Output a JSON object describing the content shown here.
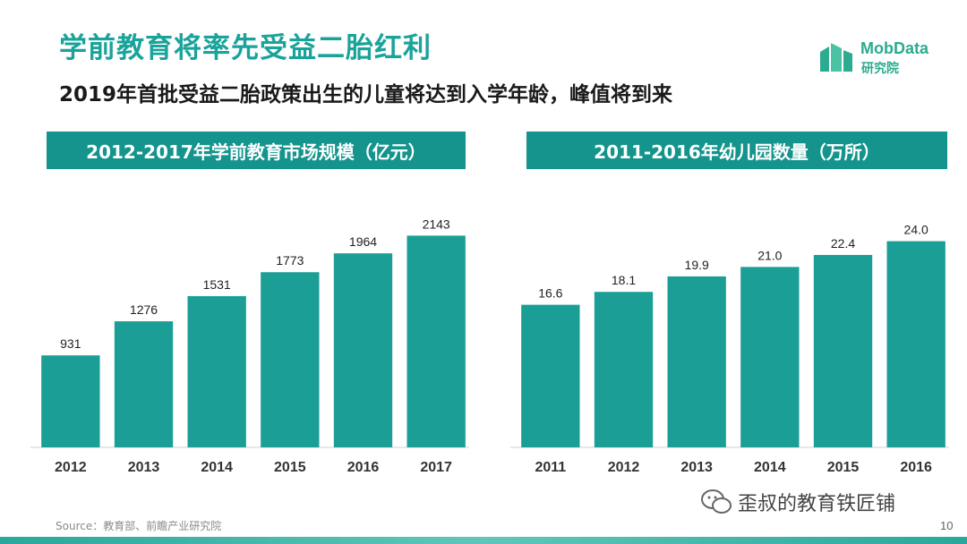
{
  "header": {
    "title": "学前教育将率先受益二胎红利",
    "subtitle": "2019年首批受益二胎政策出生的儿童将达到入学年龄，峰值将到来"
  },
  "logo": {
    "line1": "MobData",
    "line2": "研究院"
  },
  "colors": {
    "accent": "#14948c",
    "bar": "#1a9e95",
    "title": "#1aa39a"
  },
  "chart_data": [
    {
      "type": "bar",
      "title": "2012-2017年学前教育市场规模（亿元）",
      "categories": [
        "2012",
        "2013",
        "2014",
        "2015",
        "2016",
        "2017"
      ],
      "values": [
        931,
        1276,
        1531,
        1773,
        1964,
        2143
      ],
      "value_labels": [
        "931",
        "1276",
        "1531",
        "1773",
        "1964",
        "2143"
      ],
      "xlabel": "",
      "ylabel": "",
      "ylim": [
        0,
        2400
      ]
    },
    {
      "type": "bar",
      "title": "2011-2016年幼儿园数量（万所）",
      "categories": [
        "2011",
        "2012",
        "2013",
        "2014",
        "2015",
        "2016"
      ],
      "values": [
        16.6,
        18.1,
        19.9,
        21.0,
        22.4,
        24.0
      ],
      "value_labels": [
        "16.6",
        "18.1",
        "19.9",
        "21.0",
        "22.4",
        "24.0"
      ],
      "xlabel": "",
      "ylabel": "",
      "ylim": [
        0,
        27.6
      ]
    }
  ],
  "footer": {
    "source": "Source：教育部、前瞻产业研究院",
    "watermark": "歪叔的教育铁匠铺",
    "page_number": "10"
  }
}
